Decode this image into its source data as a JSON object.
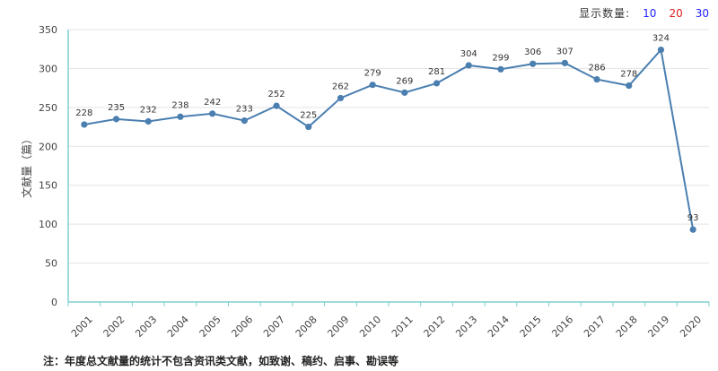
{
  "display_count": {
    "label": "显示数量:",
    "options": [
      {
        "value": "10",
        "color": "#1f1fff"
      },
      {
        "value": "20",
        "color": "#e02020"
      },
      {
        "value": "30",
        "color": "#1f1fff"
      }
    ]
  },
  "footnote": "注：年度总文献量的统计不包含资讯类文献，如致谢、稿约、启事、勘误等",
  "chart_data": {
    "type": "line",
    "ylabel": "文献量（篇）",
    "xlabel": "",
    "ylim": [
      0,
      350
    ],
    "yticks": [
      0,
      50,
      100,
      150,
      200,
      250,
      300,
      350
    ],
    "grid": true,
    "line_color": "#4a7fb0",
    "categories": [
      "2001",
      "2002",
      "2003",
      "2004",
      "2005",
      "2006",
      "2007",
      "2008",
      "2009",
      "2010",
      "2011",
      "2012",
      "2013",
      "2014",
      "2015",
      "2016",
      "2017",
      "2018",
      "2019",
      "2020"
    ],
    "series": [
      {
        "values": [
          228,
          235,
          232,
          238,
          242,
          233,
          252,
          225,
          262,
          279,
          269,
          281,
          304,
          299,
          306,
          307,
          286,
          278,
          324,
          93
        ]
      }
    ]
  }
}
